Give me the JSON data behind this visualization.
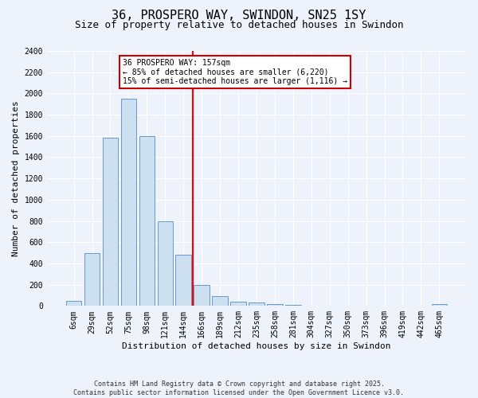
{
  "title": "36, PROSPERO WAY, SWINDON, SN25 1SY",
  "subtitle": "Size of property relative to detached houses in Swindon",
  "xlabel": "Distribution of detached houses by size in Swindon",
  "ylabel": "Number of detached properties",
  "bar_labels": [
    "6sqm",
    "29sqm",
    "52sqm",
    "75sqm",
    "98sqm",
    "121sqm",
    "144sqm",
    "166sqm",
    "189sqm",
    "212sqm",
    "235sqm",
    "258sqm",
    "281sqm",
    "304sqm",
    "327sqm",
    "350sqm",
    "373sqm",
    "396sqm",
    "419sqm",
    "442sqm",
    "465sqm"
  ],
  "bar_values": [
    50,
    500,
    1580,
    1950,
    1600,
    800,
    480,
    200,
    90,
    40,
    30,
    20,
    10,
    0,
    0,
    0,
    0,
    0,
    0,
    0,
    20
  ],
  "bar_color": "#cce0f0",
  "bar_edge_color": "#6699cc",
  "red_line_x": 6.5,
  "annotation_text": "36 PROSPERO WAY: 157sqm\n← 85% of detached houses are smaller (6,220)\n15% of semi-detached houses are larger (1,116) →",
  "annotation_box_color": "#ffffff",
  "annotation_box_edge": "#cc0000",
  "ylim": [
    0,
    2400
  ],
  "yticks": [
    0,
    200,
    400,
    600,
    800,
    1000,
    1200,
    1400,
    1600,
    1800,
    2000,
    2200,
    2400
  ],
  "footer_line1": "Contains HM Land Registry data © Crown copyright and database right 2025.",
  "footer_line2": "Contains public sector information licensed under the Open Government Licence v3.0.",
  "bg_color": "#eef2fb",
  "grid_color": "#ffffff",
  "title_fontsize": 11,
  "subtitle_fontsize": 9,
  "axis_label_fontsize": 8,
  "tick_fontsize": 7,
  "annotation_fontsize": 7,
  "footer_fontsize": 6
}
